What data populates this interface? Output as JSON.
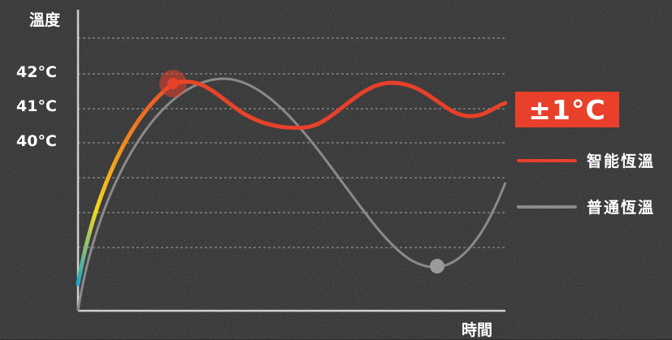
{
  "chart_data": {
    "type": "line",
    "ylabel": "溫度",
    "xlabel": "時間",
    "y_ticks": [
      "42°C",
      "41°C",
      "40°C"
    ],
    "badge": "±1°C",
    "grid": "dashed horizontal",
    "legend_placement": "right",
    "series": [
      {
        "name": "智能恆溫",
        "color": "#e8402a",
        "gradient": [
          "#1fa6c9",
          "#f2d81c",
          "#f08a1e",
          "#e8402a"
        ]
      },
      {
        "name": "普通恆溫",
        "color": "#8a8a8a"
      }
    ]
  }
}
